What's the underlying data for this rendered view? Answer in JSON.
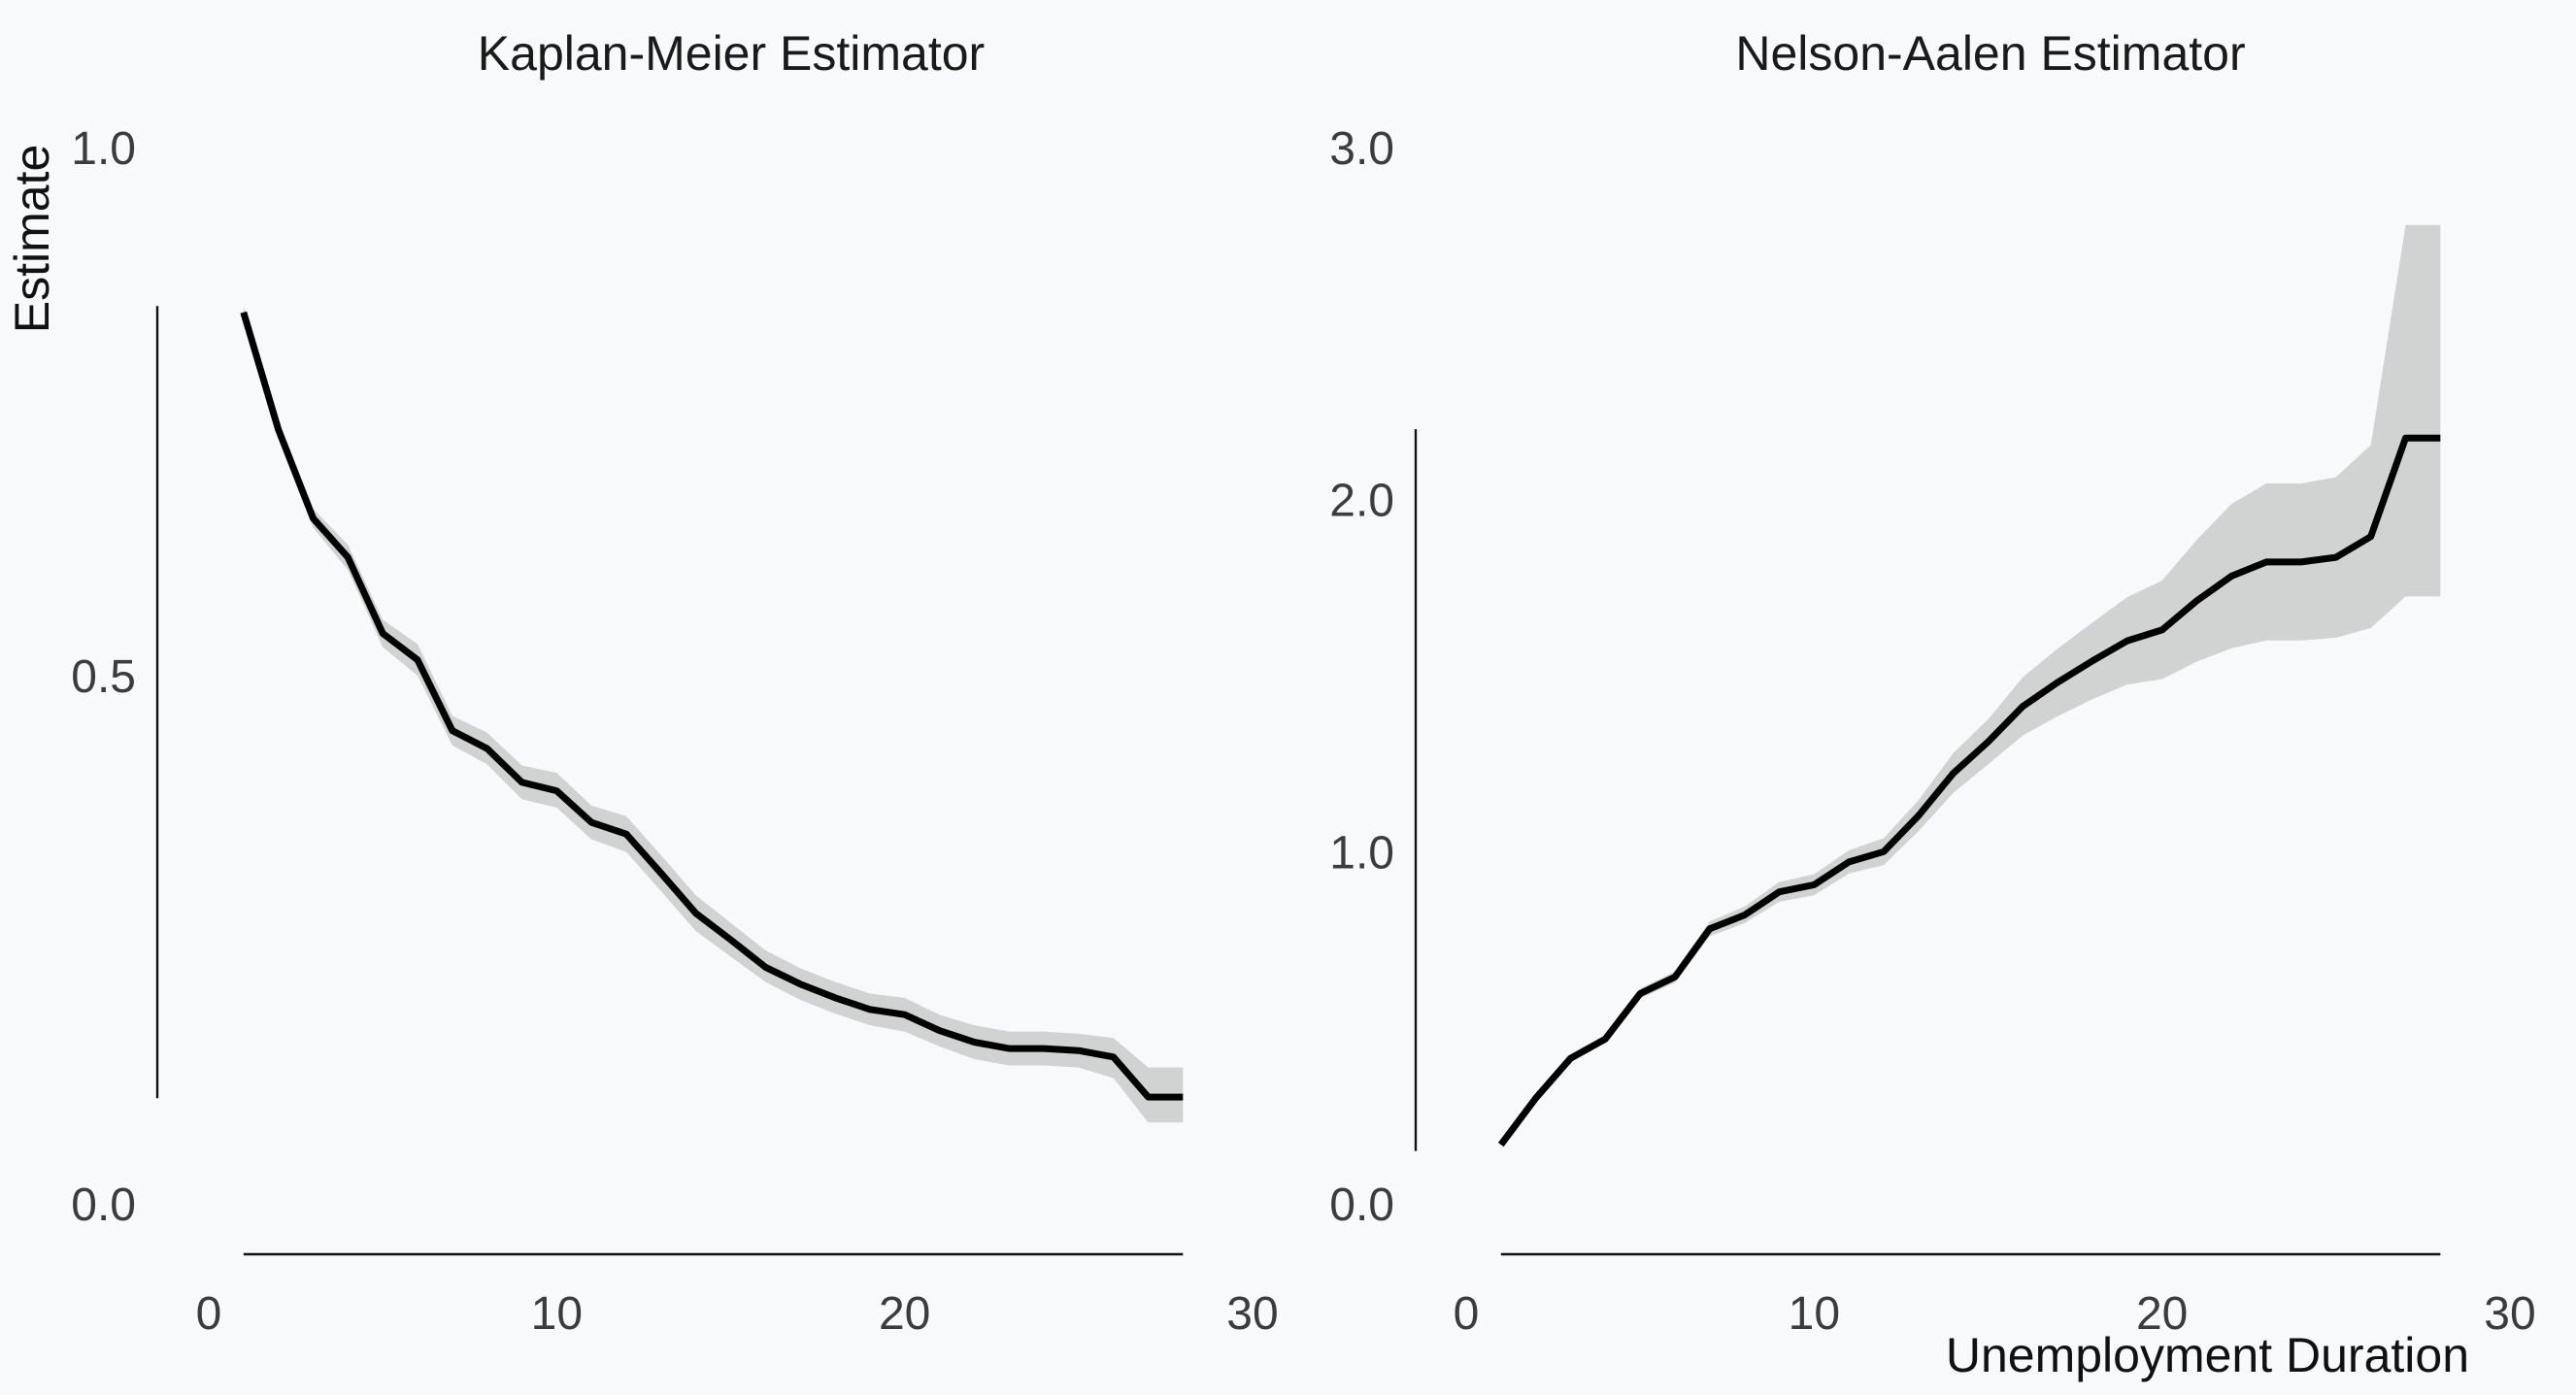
{
  "chart_data": [
    {
      "type": "line",
      "title": "Kaplan-Meier Estimator",
      "ylabel": "Estimate",
      "xlabel": "",
      "xlim": [
        0,
        30
      ],
      "ylim": [
        0,
        1
      ],
      "xticks": [
        0,
        10,
        20,
        30
      ],
      "xtick_labels": [
        "0",
        "10",
        "20",
        "30"
      ],
      "yticks": [
        0,
        0.5,
        1
      ],
      "ytick_labels": [
        "0.0",
        "0.5",
        "1.0"
      ],
      "grid": false,
      "colors": {
        "line": "#000000",
        "band": "#d1d3d3"
      },
      "series": [
        {
          "x": [
            1,
            2,
            3,
            4,
            5,
            6,
            7,
            8,
            9,
            10,
            11,
            12,
            13,
            14,
            15,
            16,
            17,
            18,
            19,
            20,
            21,
            22,
            23,
            24,
            25,
            26,
            27,
            28
          ],
          "values": [
            0.844,
            0.733,
            0.649,
            0.612,
            0.54,
            0.515,
            0.448,
            0.431,
            0.399,
            0.391,
            0.361,
            0.35,
            0.313,
            0.275,
            0.25,
            0.224,
            0.208,
            0.195,
            0.184,
            0.179,
            0.164,
            0.153,
            0.147,
            0.147,
            0.145,
            0.139,
            0.101,
            0.101
          ],
          "lower": [
            0.838,
            0.725,
            0.64,
            0.6,
            0.527,
            0.5,
            0.434,
            0.416,
            0.383,
            0.375,
            0.345,
            0.333,
            0.296,
            0.258,
            0.234,
            0.21,
            0.193,
            0.18,
            0.169,
            0.163,
            0.149,
            0.137,
            0.131,
            0.131,
            0.129,
            0.119,
            0.077,
            0.077
          ],
          "upper": [
            0.85,
            0.741,
            0.658,
            0.624,
            0.553,
            0.53,
            0.462,
            0.446,
            0.415,
            0.408,
            0.377,
            0.367,
            0.33,
            0.292,
            0.266,
            0.24,
            0.223,
            0.21,
            0.199,
            0.195,
            0.179,
            0.169,
            0.163,
            0.163,
            0.161,
            0.157,
            0.129,
            0.129
          ]
        }
      ]
    },
    {
      "type": "line",
      "title": "Nelson-Aalen Estimator",
      "ylabel": "",
      "xlabel": "Unemployment Duration",
      "xlim": [
        0,
        30
      ],
      "ylim": [
        0,
        3
      ],
      "xticks": [
        0,
        10,
        20,
        30
      ],
      "xtick_labels": [
        "0",
        "10",
        "20",
        "30"
      ],
      "yticks": [
        0,
        1,
        2,
        3
      ],
      "ytick_labels": [
        "0.0",
        "1.0",
        "2.0",
        "3.0"
      ],
      "grid": false,
      "colors": {
        "line": "#000000",
        "band": "#d1d3d3"
      },
      "series": [
        {
          "x": [
            1,
            2,
            3,
            4,
            5,
            6,
            7,
            8,
            9,
            10,
            11,
            12,
            13,
            14,
            15,
            16,
            17,
            18,
            19,
            20,
            21,
            22,
            23,
            24,
            25,
            26,
            27,
            28
          ],
          "values": [
            0.168,
            0.3,
            0.413,
            0.468,
            0.597,
            0.644,
            0.781,
            0.82,
            0.886,
            0.906,
            0.971,
            1.0,
            1.102,
            1.223,
            1.312,
            1.413,
            1.481,
            1.542,
            1.599,
            1.63,
            1.713,
            1.783,
            1.823,
            1.823,
            1.836,
            1.895,
            2.175,
            2.175
          ],
          "lower": [
            0.168,
            0.295,
            0.405,
            0.458,
            0.583,
            0.628,
            0.76,
            0.797,
            0.858,
            0.876,
            0.938,
            0.962,
            1.058,
            1.167,
            1.248,
            1.33,
            1.385,
            1.433,
            1.475,
            1.49,
            1.54,
            1.578,
            1.6,
            1.6,
            1.608,
            1.635,
            1.725,
            1.725
          ],
          "upper": [
            0.168,
            0.306,
            0.421,
            0.478,
            0.611,
            0.66,
            0.802,
            0.844,
            0.914,
            0.936,
            1.004,
            1.038,
            1.146,
            1.28,
            1.376,
            1.496,
            1.577,
            1.651,
            1.723,
            1.77,
            1.886,
            1.988,
            2.046,
            2.046,
            2.064,
            2.155,
            2.78,
            2.78
          ]
        }
      ]
    }
  ]
}
